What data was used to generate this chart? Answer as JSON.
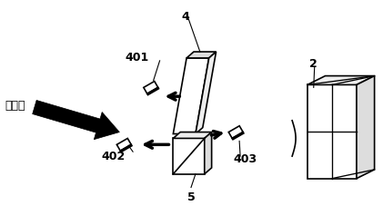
{
  "bg_color": "#ffffff",
  "line_color": "#000000",
  "fig_width": 4.21,
  "fig_height": 2.27,
  "dpi": 100,
  "labels": {
    "excitation": "激发光",
    "num4": "4",
    "num401": "401",
    "num402": "402",
    "num403": "403",
    "num5": "5",
    "num2": "2"
  }
}
